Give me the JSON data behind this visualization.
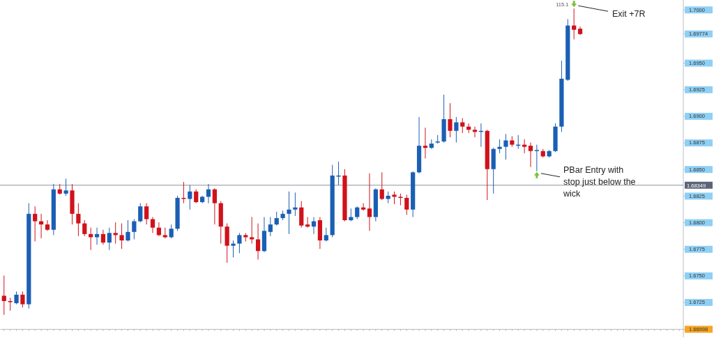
{
  "chart_data": {
    "type": "candlestick",
    "categories": [
      null,
      null,
      null,
      null,
      null,
      null,
      null,
      null,
      null,
      null,
      null,
      null,
      null,
      null,
      null,
      null,
      null,
      null,
      null,
      null,
      null,
      null,
      null,
      null,
      null,
      null,
      null,
      null,
      null,
      null,
      null,
      null,
      null,
      null,
      null,
      null,
      null,
      null,
      null,
      null,
      null,
      null,
      null,
      null,
      null,
      null,
      null,
      null,
      null,
      null,
      null,
      null,
      null,
      null,
      null,
      null,
      null,
      null,
      null,
      null,
      null,
      null,
      null,
      null,
      null,
      null,
      null,
      null,
      null,
      null,
      null,
      null,
      null,
      null,
      null,
      null,
      null,
      null,
      null,
      null,
      null,
      null,
      null,
      null,
      null,
      null,
      null,
      null,
      null,
      null,
      null,
      null,
      null,
      null,
      null,
      null,
      null,
      null,
      null,
      null,
      null,
      null,
      null,
      null,
      null,
      null,
      null,
      null,
      null,
      null
    ],
    "ohlc": [
      [
        1.6731,
        1.675,
        1.6713,
        1.6726
      ],
      [
        1.6726,
        1.6729,
        1.6717,
        1.6725
      ],
      [
        1.6724,
        1.6735,
        1.6723,
        1.6732
      ],
      [
        1.6732,
        1.6735,
        1.672,
        1.6723
      ],
      [
        1.6723,
        1.6818,
        1.6719,
        1.6808
      ],
      [
        1.6808,
        1.6815,
        1.6782,
        1.6801
      ],
      [
        1.6801,
        1.6808,
        1.6785,
        1.6798
      ],
      [
        1.6798,
        1.6802,
        1.6792,
        1.6793
      ],
      [
        1.6793,
        1.6836,
        1.6788,
        1.6831
      ],
      [
        1.6831,
        1.6836,
        1.6826,
        1.6827
      ],
      [
        1.6827,
        1.6841,
        1.6825,
        1.683
      ],
      [
        1.683,
        1.6836,
        1.6798,
        1.6808
      ],
      [
        1.6808,
        1.6818,
        1.6787,
        1.6799
      ],
      [
        1.6799,
        1.6802,
        1.6787,
        1.6789
      ],
      [
        1.6789,
        1.6795,
        1.6774,
        1.6786
      ],
      [
        1.6786,
        1.6795,
        1.6779,
        1.6789
      ],
      [
        1.6789,
        1.6793,
        1.6779,
        1.6781
      ],
      [
        1.6781,
        1.6795,
        1.6774,
        1.679
      ],
      [
        1.679,
        1.68,
        1.678,
        1.6788
      ],
      [
        1.6788,
        1.6799,
        1.6775,
        1.6783
      ],
      [
        1.6783,
        1.6802,
        1.6782,
        1.6791
      ],
      [
        1.6791,
        1.6803,
        1.6784,
        1.6801
      ],
      [
        1.6801,
        1.6818,
        1.68,
        1.6815
      ],
      [
        1.6815,
        1.6818,
        1.6798,
        1.6803
      ],
      [
        1.6803,
        1.6805,
        1.679,
        1.6795
      ],
      [
        1.6795,
        1.68,
        1.6787,
        1.6788
      ],
      [
        1.6788,
        1.6795,
        1.6785,
        1.6786
      ],
      [
        1.6786,
        1.6798,
        1.6785,
        1.6794
      ],
      [
        1.6794,
        1.6825,
        1.6792,
        1.6823
      ],
      [
        1.6823,
        1.6838,
        1.6818,
        1.6822
      ],
      [
        1.6822,
        1.6835,
        1.6812,
        1.6829
      ],
      [
        1.6829,
        1.6831,
        1.6818,
        1.6819
      ],
      [
        1.6819,
        1.6825,
        1.6818,
        1.6824
      ],
      [
        1.6824,
        1.6836,
        1.6818,
        1.6831
      ],
      [
        1.6831,
        1.6832,
        1.6798,
        1.6818
      ],
      [
        1.6818,
        1.682,
        1.678,
        1.6796
      ],
      [
        1.6796,
        1.6799,
        1.6762,
        1.6778
      ],
      [
        1.6778,
        1.6783,
        1.6767,
        1.678
      ],
      [
        1.678,
        1.679,
        1.6771,
        1.6788
      ],
      [
        1.6788,
        1.679,
        1.6782,
        1.6786
      ],
      [
        1.6786,
        1.6805,
        1.678,
        1.6784
      ],
      [
        1.6784,
        1.6799,
        1.6765,
        1.6773
      ],
      [
        1.6773,
        1.6805,
        1.6772,
        1.6792
      ],
      [
        1.6791,
        1.6805,
        1.6787,
        1.6798
      ],
      [
        1.6798,
        1.681,
        1.6797,
        1.6804
      ],
      [
        1.6804,
        1.6811,
        1.6802,
        1.6808
      ],
      [
        1.6808,
        1.6829,
        1.6789,
        1.6812
      ],
      [
        1.6812,
        1.6828,
        1.6806,
        1.6814
      ],
      [
        1.6814,
        1.682,
        1.6795,
        1.6797
      ],
      [
        1.6798,
        1.6805,
        1.6795,
        1.6796
      ],
      [
        1.6796,
        1.6805,
        1.6789,
        1.6801
      ],
      [
        1.6802,
        1.6805,
        1.6775,
        1.6783
      ],
      [
        1.6783,
        1.6795,
        1.6782,
        1.6788
      ],
      [
        1.6788,
        1.6854,
        1.6786,
        1.6844
      ],
      [
        1.6843,
        1.6857,
        1.6835,
        1.6844
      ],
      [
        1.6844,
        1.685,
        1.6801,
        1.6802
      ],
      [
        1.6802,
        1.6813,
        1.6801,
        1.6805
      ],
      [
        1.6805,
        1.6815,
        1.6803,
        1.6814
      ],
      [
        1.6814,
        1.6818,
        1.6811,
        1.6812
      ],
      [
        1.6813,
        1.6846,
        1.6792,
        1.6805
      ],
      [
        1.6805,
        1.6832,
        1.6801,
        1.6831
      ],
      [
        1.6831,
        1.6847,
        1.6821,
        1.6822
      ],
      [
        1.6822,
        1.6829,
        1.6818,
        1.6825
      ],
      [
        1.6826,
        1.6829,
        1.6817,
        1.6824
      ],
      [
        1.6824,
        1.6827,
        1.6816,
        1.6823
      ],
      [
        1.6823,
        1.6826,
        1.6807,
        1.6812
      ],
      [
        1.6812,
        1.6848,
        1.6805,
        1.6847
      ],
      [
        1.6847,
        1.6899,
        1.6846,
        1.6872
      ],
      [
        1.6872,
        1.6889,
        1.686,
        1.687
      ],
      [
        1.687,
        1.6878,
        1.6869,
        1.6874
      ],
      [
        1.6875,
        1.6882,
        1.6874,
        1.6876
      ],
      [
        1.6876,
        1.692,
        1.6875,
        1.6897
      ],
      [
        1.6897,
        1.6912,
        1.688,
        1.6886
      ],
      [
        1.6886,
        1.6899,
        1.6875,
        1.6894
      ],
      [
        1.6894,
        1.6898,
        1.6884,
        1.689
      ],
      [
        1.689,
        1.6893,
        1.6884,
        1.6887
      ],
      [
        1.6887,
        1.689,
        1.688,
        1.6885
      ],
      [
        1.6885,
        1.6893,
        1.6871,
        1.6886
      ],
      [
        1.6886,
        1.6887,
        1.6821,
        1.685
      ],
      [
        1.685,
        1.687,
        1.6827,
        1.6869
      ],
      [
        1.6869,
        1.6878,
        1.6865,
        1.6871
      ],
      [
        1.6871,
        1.6883,
        1.6859,
        1.6877
      ],
      [
        1.6877,
        1.6881,
        1.6871,
        1.6873
      ],
      [
        1.6872,
        1.6882,
        1.6869,
        1.6873
      ],
      [
        1.6873,
        1.6878,
        1.6865,
        1.6871
      ],
      [
        1.6872,
        1.6875,
        1.6852,
        1.6867
      ],
      [
        1.6867,
        1.6873,
        1.6848,
        1.6868
      ],
      [
        1.6867,
        1.6869,
        1.6861,
        1.6862
      ],
      [
        1.6862,
        1.6868,
        1.6861,
        1.6867
      ],
      [
        1.6867,
        1.6893,
        1.6866,
        1.689
      ],
      [
        1.689,
        1.6952,
        1.6885,
        1.6935
      ],
      [
        1.6934,
        1.6991,
        1.6933,
        1.6985
      ],
      [
        1.6985,
        1.7001,
        1.6972,
        1.6981
      ],
      [
        1.6982,
        1.6984,
        1.6976,
        1.6977
      ],
      null,
      null,
      null,
      null,
      null,
      null,
      null,
      null,
      null,
      null,
      null,
      null,
      null,
      null,
      null,
      null
    ],
    "colors": [
      "#d0121b",
      "#d0121b",
      "#1b5fb5",
      "#d0121b",
      "#1b5fb5",
      "#d0121b",
      "#d0121b",
      "#d0121b",
      "#1b5fb5",
      "#d0121b",
      "#1b5fb5",
      "#d0121b",
      "#d0121b",
      "#d0121b",
      "#d0121b",
      "#1b5fb5",
      "#d0121b",
      "#1b5fb5",
      "#d0121b",
      "#d0121b",
      "#1b5fb5",
      "#1b5fb5",
      "#1b5fb5",
      "#d0121b",
      "#d0121b",
      "#d0121b",
      "#d0121b",
      "#1b5fb5",
      "#1b5fb5",
      "#d0121b",
      "#1b5fb5",
      "#d0121b",
      "#1b5fb5",
      "#1b5fb5",
      "#d0121b",
      "#d0121b",
      "#d0121b",
      "#1b5fb5",
      "#1b5fb5",
      "#d0121b",
      "#d0121b",
      "#d0121b",
      "#1b5fb5",
      "#1b5fb5",
      "#1b5fb5",
      "#1b5fb5",
      "#1b5fb5",
      "#1b5fb5",
      "#d0121b",
      "#d0121b",
      "#1b5fb5",
      "#d0121b",
      "#1b5fb5",
      "#1b5fb5",
      "#1b5fb5",
      "#d0121b",
      "#1b5fb5",
      "#1b5fb5",
      "#d0121b",
      "#d0121b",
      "#1b5fb5",
      "#d0121b",
      "#1b5fb5",
      "#d0121b",
      "#d0121b",
      "#d0121b",
      "#1b5fb5",
      "#1b5fb5",
      "#d0121b",
      "#1b5fb5",
      "#1b5fb5",
      "#1b5fb5",
      "#d0121b",
      "#1b5fb5",
      "#d0121b",
      "#d0121b",
      "#d0121b",
      "#1b5fb5",
      "#d0121b",
      "#1b5fb5",
      "#1b5fb5",
      "#1b5fb5",
      "#d0121b",
      "#1b5fb5",
      "#d0121b",
      "#d0121b",
      "#1b5fb5",
      "#d0121b",
      "#1b5fb5",
      "#1b5fb5",
      "#1b5fb5",
      "#1b5fb5",
      "#d0121b",
      "#d0121b",
      null,
      null,
      null,
      null,
      null,
      null,
      null,
      null,
      null,
      null,
      null,
      null,
      null,
      null,
      null,
      null
    ],
    "ylim": [
      1.66998,
      1.7009
    ],
    "yticks": [
      {
        "value": 1.66998,
        "label": "1.66998"
      },
      {
        "value": 1.6725,
        "label": "1.6725"
      },
      {
        "value": 1.675,
        "label": "1.6750"
      },
      {
        "value": 1.6775,
        "label": "1.6775"
      },
      {
        "value": 1.68,
        "label": "1.6800"
      },
      {
        "value": 1.6825,
        "label": "1.6825"
      },
      {
        "value": 1.685,
        "label": "1.6850"
      },
      {
        "value": 1.6875,
        "label": "1.6875"
      },
      {
        "value": 1.69,
        "label": "1.6900"
      },
      {
        "value": 1.6925,
        "label": "1.6925"
      },
      {
        "value": 1.695,
        "label": "1.6950"
      },
      {
        "value": 1.69774,
        "label": "1.69774"
      },
      {
        "value": 1.7,
        "label": "1.7000"
      }
    ],
    "tick_labels": "y",
    "ref_lines": [
      {
        "axis": "y",
        "value": 1.68349,
        "label": "1.68349",
        "color": "#8c929c"
      }
    ],
    "annotations": [
      "115.1",
      "Exit +7R",
      "PBar Entry with stop just below the wick"
    ]
  }
}
